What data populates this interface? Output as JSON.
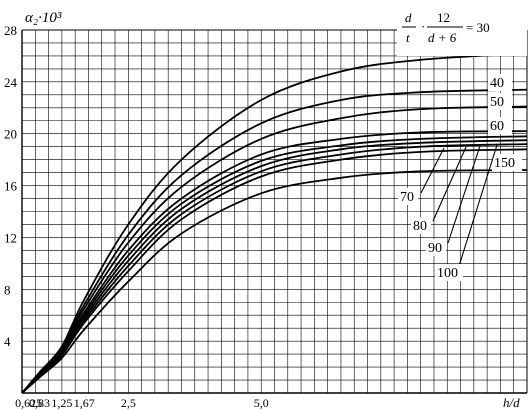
{
  "chart_data": {
    "type": "line",
    "ylabel": "α₂·10³",
    "xlabel": "h/d",
    "formula": {
      "d": "d",
      "t": "t",
      "num": "12",
      "den": "d + 6",
      "eq": "= 30"
    },
    "grid": true,
    "xlim": [
      0.5,
      10.0
    ],
    "ylim": [
      0,
      28
    ],
    "y_ticks": [
      "4",
      "8",
      "12",
      "16",
      "20",
      "24",
      "28"
    ],
    "y_tick_values": [
      4,
      8,
      12,
      16,
      20,
      24,
      28
    ],
    "x_tick_values": [
      0.625,
      0.83,
      1.25,
      1.67,
      2.5,
      5.0
    ],
    "x_ticks": [
      "0,625",
      "0,83",
      "1,25",
      "1,67",
      "2,5",
      "5,0"
    ],
    "series": [
      {
        "name": "30",
        "label": "",
        "x": [
          0.5,
          0.83,
          1.25,
          1.67,
          2.5,
          3.5,
          5.0,
          6.5,
          8.0,
          10.0
        ],
        "y": [
          0,
          1.6,
          3.6,
          7.2,
          13.0,
          18.0,
          22.6,
          24.8,
          25.7,
          26.2
        ]
      },
      {
        "name": "40",
        "label": "40",
        "x": [
          0.5,
          0.83,
          1.25,
          1.67,
          2.5,
          3.5,
          5.0,
          6.5,
          8.0,
          10.0
        ],
        "y": [
          0,
          1.5,
          3.5,
          6.8,
          12.2,
          16.8,
          20.8,
          22.6,
          23.2,
          23.4
        ]
      },
      {
        "name": "50",
        "label": "50",
        "x": [
          0.5,
          0.83,
          1.25,
          1.67,
          2.5,
          3.5,
          5.0,
          6.5,
          8.0,
          10.0
        ],
        "y": [
          0,
          1.5,
          3.4,
          6.5,
          11.6,
          15.9,
          19.6,
          21.2,
          21.9,
          22.1
        ]
      },
      {
        "name": "60",
        "label": "60",
        "x": [
          0.5,
          0.83,
          1.25,
          1.67,
          2.5,
          3.5,
          5.0,
          6.5,
          8.0,
          10.0
        ],
        "y": [
          0,
          1.4,
          3.3,
          6.2,
          11.0,
          15.0,
          18.4,
          19.6,
          20.1,
          20.2
        ]
      },
      {
        "name": "70",
        "label": "70",
        "x": [
          0.5,
          0.83,
          1.25,
          1.67,
          2.5,
          3.5,
          5.0,
          6.5,
          8.0,
          10.0
        ],
        "y": [
          0,
          1.4,
          3.2,
          6.0,
          10.6,
          14.6,
          17.9,
          19.1,
          19.6,
          19.8
        ]
      },
      {
        "name": "80",
        "label": "80",
        "x": [
          0.5,
          0.83,
          1.25,
          1.67,
          2.5,
          3.5,
          5.0,
          6.5,
          8.0,
          10.0
        ],
        "y": [
          0,
          1.4,
          3.1,
          5.8,
          10.2,
          14.2,
          17.5,
          18.8,
          19.3,
          19.5
        ]
      },
      {
        "name": "90",
        "label": "90",
        "x": [
          0.5,
          0.83,
          1.25,
          1.67,
          2.5,
          3.5,
          5.0,
          6.5,
          8.0,
          10.0
        ],
        "y": [
          0,
          1.3,
          3.0,
          5.6,
          9.8,
          13.8,
          17.1,
          18.4,
          19.0,
          19.2
        ]
      },
      {
        "name": "100",
        "label": "100",
        "x": [
          0.5,
          0.83,
          1.25,
          1.67,
          2.5,
          3.5,
          5.0,
          6.5,
          8.0,
          10.0
        ],
        "y": [
          0,
          1.3,
          2.9,
          5.4,
          9.4,
          13.4,
          16.7,
          18.0,
          18.6,
          18.8
        ]
      },
      {
        "name": "150",
        "label": "150",
        "x": [
          0.5,
          0.83,
          1.25,
          1.67,
          2.5,
          3.5,
          5.0,
          6.5,
          8.0,
          10.0
        ],
        "y": [
          0,
          1.2,
          2.7,
          4.9,
          8.6,
          12.3,
          15.4,
          16.6,
          17.1,
          17.2
        ]
      }
    ],
    "labels_70_to_100": [
      "70",
      "80",
      "90",
      "100"
    ]
  }
}
